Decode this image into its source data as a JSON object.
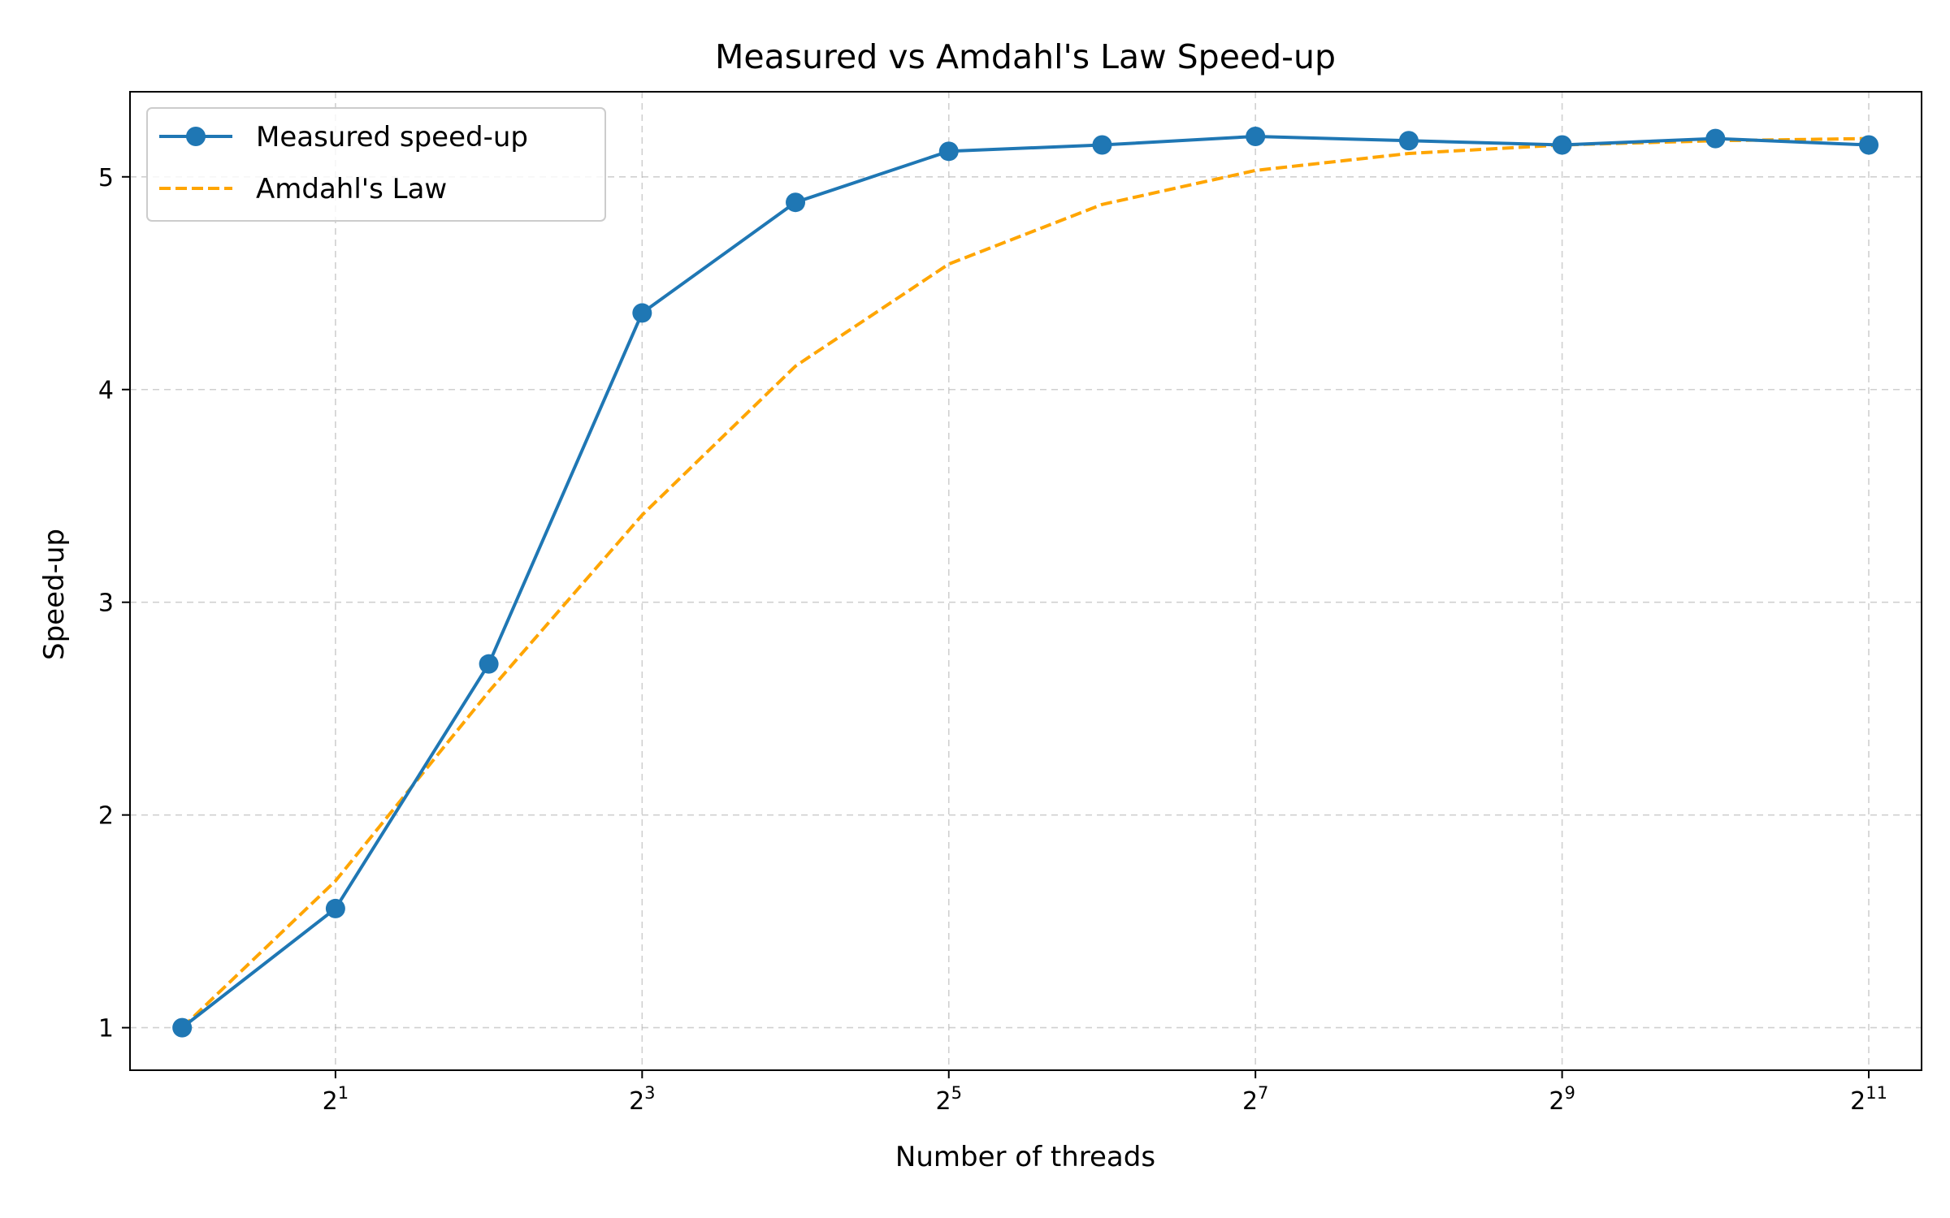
{
  "chart_data": {
    "type": "line",
    "title": "Measured vs Amdahl's Law Speed-up",
    "xlabel": "Number of threads",
    "ylabel": "Speed-up",
    "x_scale": "log2",
    "x": [
      1,
      2,
      4,
      8,
      16,
      32,
      64,
      128,
      256,
      512,
      1024,
      2048
    ],
    "x_ticks": [
      {
        "value": 2,
        "base": "2",
        "exp": "1"
      },
      {
        "value": 8,
        "base": "2",
        "exp": "3"
      },
      {
        "value": 32,
        "base": "2",
        "exp": "5"
      },
      {
        "value": 128,
        "base": "2",
        "exp": "7"
      },
      {
        "value": 512,
        "base": "2",
        "exp": "9"
      },
      {
        "value": 2048,
        "base": "2",
        "exp": "11"
      }
    ],
    "y_ticks": [
      1,
      2,
      3,
      4,
      5
    ],
    "xlim": [
      0.79,
      2600
    ],
    "ylim": [
      0.8,
      5.4
    ],
    "grid": true,
    "legend_position": "top-left",
    "series": [
      {
        "name": "Measured speed-up",
        "color": "#1f77b4",
        "style": "solid",
        "marker": "circle",
        "values": [
          1.0,
          1.56,
          2.71,
          4.36,
          4.88,
          5.12,
          5.15,
          5.19,
          5.17,
          5.15,
          5.18,
          5.15
        ]
      },
      {
        "name": "Amdahl's Law",
        "color": "#ffa500",
        "style": "dashed",
        "marker": "none",
        "values": [
          1.0,
          1.69,
          2.58,
          3.41,
          4.11,
          4.59,
          4.87,
          5.03,
          5.11,
          5.15,
          5.17,
          5.18
        ]
      }
    ]
  }
}
